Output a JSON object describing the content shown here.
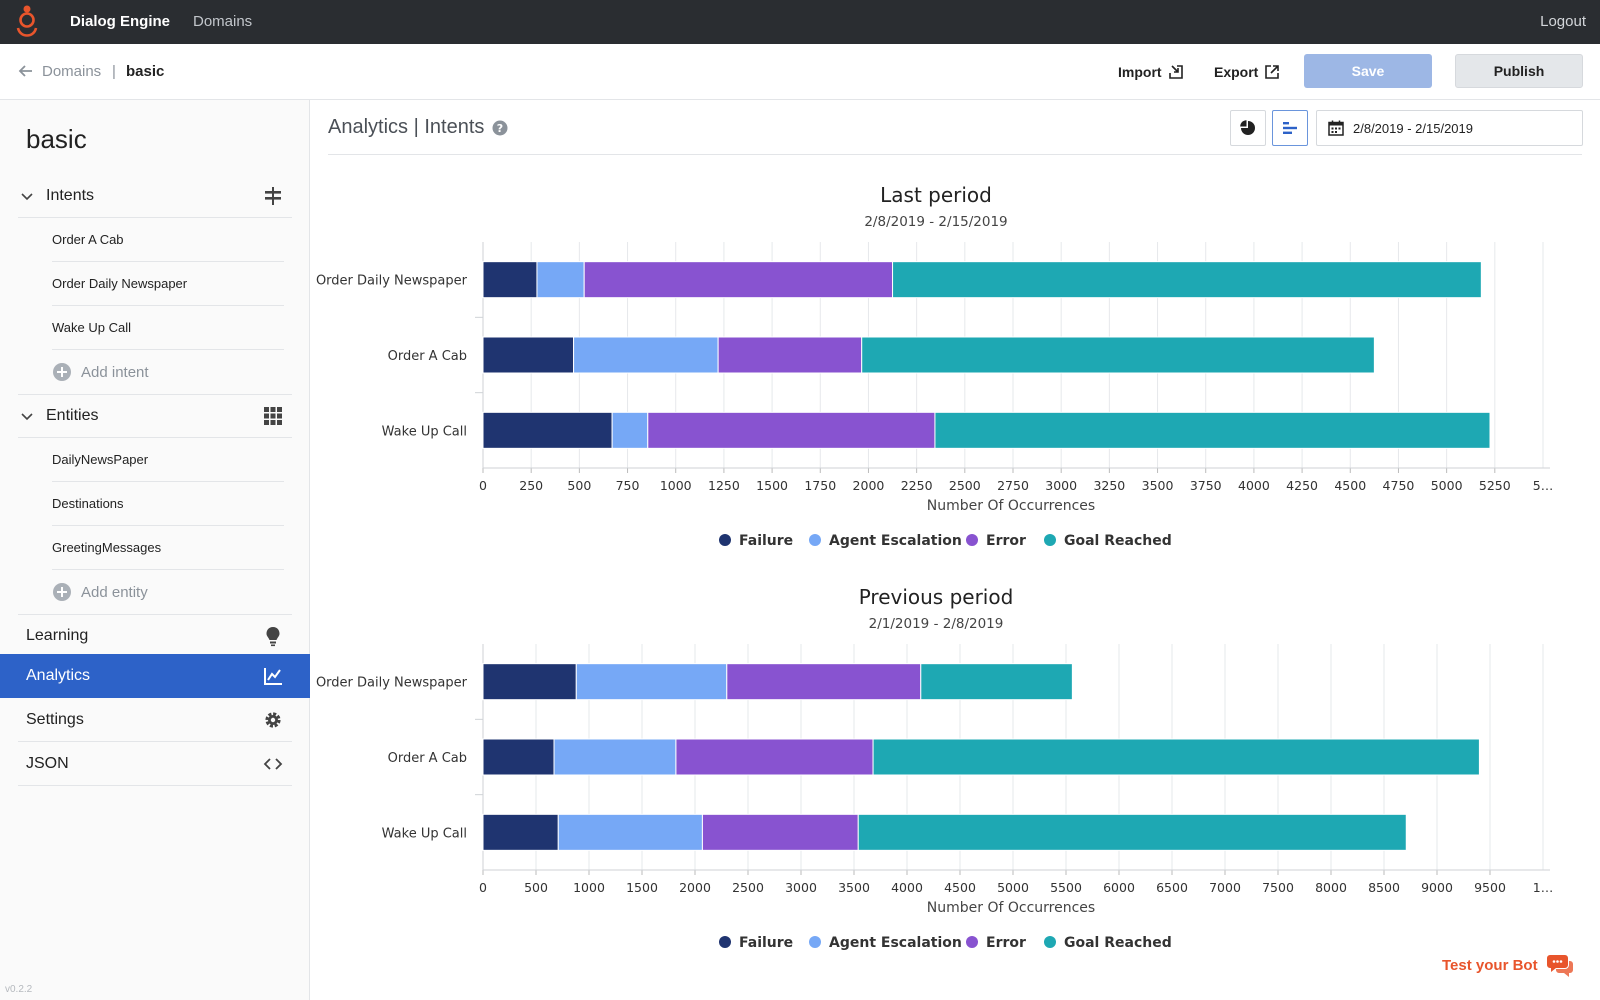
{
  "topbar": {
    "app_title": "Dialog Engine",
    "nav_domains": "Domains",
    "logout": "Logout"
  },
  "breadcrumb": {
    "parent": "Domains",
    "separator": "|",
    "current": "basic"
  },
  "header_actions": {
    "import_label": "Import",
    "export_label": "Export",
    "save_label": "Save",
    "publish_label": "Publish"
  },
  "sidebar": {
    "title": "basic",
    "intents_label": "Intents",
    "intents": [
      "Order A Cab",
      "Order Daily Newspaper",
      "Wake Up Call"
    ],
    "add_intent": "Add intent",
    "entities_label": "Entities",
    "entities": [
      "DailyNewsPaper",
      "Destinations",
      "GreetingMessages"
    ],
    "add_entity": "Add entity",
    "learning": "Learning",
    "analytics": "Analytics",
    "settings": "Settings",
    "json": "JSON",
    "version": "v0.2.2"
  },
  "main": {
    "title": "Analytics | Intents",
    "date_range": "2/8/2019 - 2/15/2019"
  },
  "test_bot": "Test your Bot",
  "colors": {
    "failure": "#1f3470",
    "agent_escalation": "#76a8f6",
    "error": "#8853d0",
    "goal_reached": "#1ea8b3",
    "accent": "#2d62c8",
    "brand": "#e8552c"
  },
  "chart_data": [
    {
      "type": "bar",
      "orientation": "horizontal",
      "stacked": true,
      "title": "Last period",
      "subtitle": "2/8/2019 - 2/15/2019",
      "xlabel": "Number Of Occurrences",
      "ylabel": "",
      "xlim": [
        0,
        5500
      ],
      "x_ticks": [
        0,
        250,
        500,
        750,
        1000,
        1250,
        1500,
        1750,
        2000,
        2250,
        2500,
        2750,
        3000,
        3250,
        3500,
        3750,
        4000,
        4250,
        4500,
        4750,
        5000,
        5250
      ],
      "last_tick_label": "5…",
      "categories": [
        "Order Daily Newspaper",
        "Order A Cab",
        "Wake Up Call"
      ],
      "series": [
        {
          "name": "Failure",
          "values": [
            280,
            470,
            670
          ]
        },
        {
          "name": "Agent Escalation",
          "values": [
            245,
            750,
            185
          ]
        },
        {
          "name": "Error",
          "values": [
            1600,
            745,
            1490
          ]
        },
        {
          "name": "Goal Reached",
          "values": [
            3055,
            2660,
            2880
          ]
        }
      ],
      "legend_position": "bottom",
      "grid": true
    },
    {
      "type": "bar",
      "orientation": "horizontal",
      "stacked": true,
      "title": "Previous period",
      "subtitle": "2/1/2019 - 2/8/2019",
      "xlabel": "Number Of Occurrences",
      "ylabel": "",
      "xlim": [
        0,
        10000
      ],
      "x_ticks": [
        0,
        500,
        1000,
        1500,
        2000,
        2500,
        3000,
        3500,
        4000,
        4500,
        5000,
        5500,
        6000,
        6500,
        7000,
        7500,
        8000,
        8500,
        9000,
        9500
      ],
      "last_tick_label": "1…",
      "categories": [
        "Order Daily Newspaper",
        "Order A Cab",
        "Wake Up Call"
      ],
      "series": [
        {
          "name": "Failure",
          "values": [
            880,
            670,
            710
          ]
        },
        {
          "name": "Agent Escalation",
          "values": [
            1420,
            1150,
            1360
          ]
        },
        {
          "name": "Error",
          "values": [
            1830,
            1860,
            1470
          ]
        },
        {
          "name": "Goal Reached",
          "values": [
            1430,
            5720,
            5170
          ]
        }
      ],
      "legend_position": "bottom",
      "grid": true
    }
  ]
}
